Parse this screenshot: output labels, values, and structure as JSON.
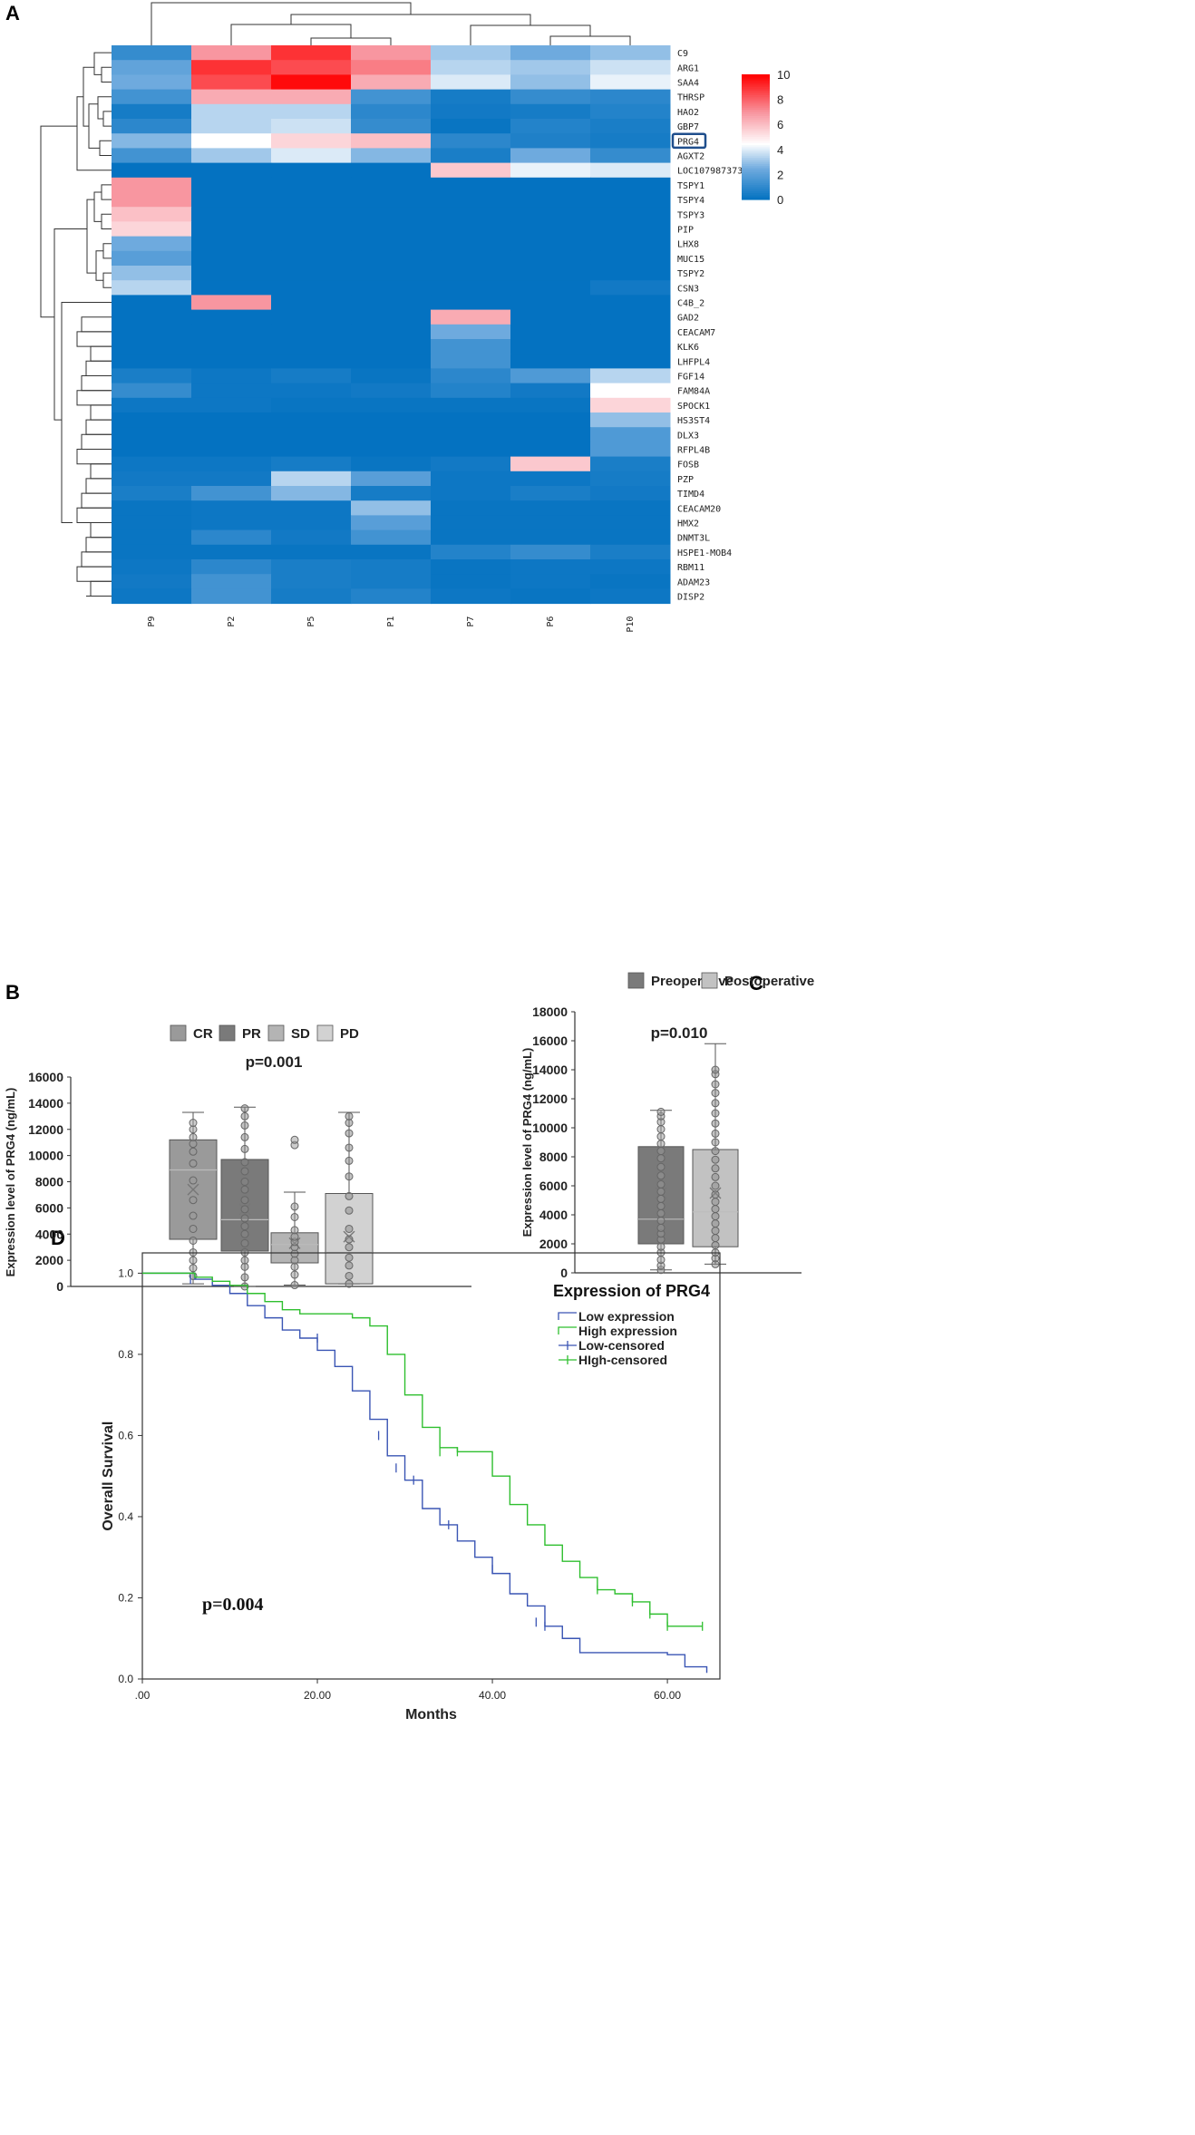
{
  "panels": {
    "a": "A",
    "b": "B",
    "c": "C",
    "d": "D"
  },
  "chart_data": [
    {
      "type": "heatmap",
      "columns": [
        "P9",
        "P2",
        "P5",
        "P1",
        "P7",
        "P6",
        "P10"
      ],
      "rows": [
        "C9",
        "ARG1",
        "SAA4",
        "THRSP",
        "HAO2",
        "GBP7",
        "PRG4",
        "AGXT2",
        "LOC107987373",
        "TSPY1",
        "TSPY4",
        "TSPY3",
        "PIP",
        "LHX8",
        "MUC15",
        "TSPY2",
        "CSN3",
        "C4B_2",
        "GAD2",
        "CEACAM7",
        "KLK6",
        "LHFPL4",
        "FGF14",
        "FAM84A",
        "SPOCK1",
        "HS3ST4",
        "DLX3",
        "RFPL4B",
        "FOSB",
        "PZP",
        "TIMD4",
        "CEACAM20",
        "HMX2",
        "DNMT3L",
        "HSPE1-MOB4",
        "RBM11",
        "ADAM23",
        "DISP2"
      ],
      "highlighted_row": "PRG4",
      "values": [
        [
          1.2,
          7.0,
          9.0,
          7.0,
          3.2,
          2.5,
          3.0
        ],
        [
          2.2,
          9.0,
          8.5,
          7.5,
          3.5,
          3.2,
          3.8
        ],
        [
          2.5,
          8.5,
          9.8,
          6.5,
          4.0,
          3.0,
          4.2
        ],
        [
          1.5,
          6.5,
          6.5,
          1.5,
          0.5,
          1.2,
          1.0
        ],
        [
          0.5,
          3.5,
          3.5,
          1.0,
          0.4,
          0.5,
          0.8
        ],
        [
          1.0,
          3.5,
          3.8,
          1.2,
          0.2,
          0.8,
          0.6
        ],
        [
          2.8,
          4.5,
          5.5,
          6.0,
          1.0,
          0.7,
          0.5
        ],
        [
          1.5,
          3.2,
          4.0,
          2.8,
          0.6,
          2.5,
          1.2
        ],
        [
          0.1,
          0.1,
          0.1,
          0.1,
          5.8,
          4.2,
          4.0
        ],
        [
          7.0,
          0.1,
          0.1,
          0.1,
          0.1,
          0.1,
          0.1
        ],
        [
          7.0,
          0.1,
          0.1,
          0.1,
          0.1,
          0.1,
          0.1
        ],
        [
          6.0,
          0.1,
          0.1,
          0.1,
          0.1,
          0.1,
          0.1
        ],
        [
          5.5,
          0.1,
          0.1,
          0.1,
          0.1,
          0.1,
          0.1
        ],
        [
          2.5,
          0.1,
          0.1,
          0.1,
          0.1,
          0.1,
          0.1
        ],
        [
          2.0,
          0.1,
          0.1,
          0.1,
          0.1,
          0.1,
          0.1
        ],
        [
          3.0,
          0.1,
          0.1,
          0.1,
          0.1,
          0.1,
          0.1
        ],
        [
          3.5,
          0.1,
          0.1,
          0.1,
          0.1,
          0.1,
          0.4
        ],
        [
          0.1,
          7.0,
          0.1,
          0.1,
          0.1,
          0.1,
          0.1
        ],
        [
          0.1,
          0.1,
          0.1,
          0.1,
          6.5,
          0.1,
          0.1
        ],
        [
          0.1,
          0.1,
          0.1,
          0.1,
          2.5,
          0.1,
          0.1
        ],
        [
          0.1,
          0.1,
          0.1,
          0.1,
          1.5,
          0.1,
          0.1
        ],
        [
          0.1,
          0.1,
          0.1,
          0.1,
          1.5,
          0.1,
          0.1
        ],
        [
          0.6,
          0.3,
          0.5,
          0.2,
          1.0,
          1.8,
          3.5
        ],
        [
          1.2,
          0.3,
          0.3,
          0.4,
          0.8,
          0.4,
          4.5
        ],
        [
          0.3,
          0.3,
          0.2,
          0.2,
          0.2,
          0.2,
          5.5
        ],
        [
          0.1,
          0.1,
          0.1,
          0.1,
          0.1,
          0.1,
          3.0
        ],
        [
          0.1,
          0.1,
          0.1,
          0.1,
          0.1,
          0.1,
          1.8
        ],
        [
          0.1,
          0.1,
          0.1,
          0.1,
          0.1,
          0.1,
          1.8
        ],
        [
          0.3,
          0.3,
          0.5,
          0.2,
          0.4,
          5.8,
          0.6
        ],
        [
          0.4,
          0.4,
          3.5,
          2.0,
          0.3,
          0.3,
          0.5
        ],
        [
          0.6,
          1.5,
          2.8,
          0.5,
          0.3,
          0.6,
          0.4
        ],
        [
          0.2,
          0.3,
          0.3,
          3.0,
          0.2,
          0.2,
          0.2
        ],
        [
          0.2,
          0.3,
          0.3,
          2.0,
          0.2,
          0.2,
          0.2
        ],
        [
          0.2,
          1.0,
          0.4,
          1.5,
          0.2,
          0.2,
          0.2
        ],
        [
          0.2,
          0.2,
          0.2,
          0.2,
          0.8,
          1.2,
          0.6
        ],
        [
          0.3,
          1.0,
          0.6,
          0.5,
          0.2,
          0.3,
          0.3
        ],
        [
          0.4,
          1.5,
          0.6,
          0.5,
          0.2,
          0.3,
          0.2
        ],
        [
          0.3,
          1.5,
          0.5,
          0.8,
          0.3,
          0.2,
          0.3
        ]
      ],
      "colorbar": {
        "min": 0,
        "max": 10,
        "ticks": [
          "0",
          "2",
          "4",
          "6",
          "8",
          "10"
        ]
      }
    },
    {
      "type": "box",
      "legend": [
        "CR",
        "PR",
        "SD",
        "PD"
      ],
      "ylabel": "Expression level of PRG4 (ng/mL)",
      "ylim": [
        0,
        16000
      ],
      "yticks": [
        "0",
        "2000",
        "4000",
        "6000",
        "8000",
        "10000",
        "12000",
        "14000",
        "16000"
      ],
      "annotation": "p=0.001",
      "series": [
        {
          "name": "CR",
          "min": 200,
          "q1": 3600,
          "median": 8900,
          "q3": 11200,
          "max": 13300,
          "mean": 7400,
          "points": [
            800,
            1400,
            2000,
            2600,
            3500,
            4400,
            5400,
            6600,
            8100,
            9400,
            10300,
            10900,
            11400,
            12000,
            12500
          ]
        },
        {
          "name": "PR",
          "min": 0,
          "q1": 2700,
          "median": 5100,
          "q3": 9700,
          "max": 13700,
          "mean": 5900,
          "points": [
            0,
            700,
            1500,
            2000,
            2600,
            3300,
            4000,
            4600,
            5200,
            5900,
            6600,
            7400,
            8000,
            8800,
            9500,
            10500,
            11400,
            12300,
            13000,
            13600
          ]
        },
        {
          "name": "SD",
          "min": 100,
          "q1": 1800,
          "median": 3200,
          "q3": 4100,
          "max": 7200,
          "mean": 3300,
          "points": [
            100,
            900,
            1500,
            2000,
            2500,
            3000,
            3400,
            3800,
            4300,
            5300,
            6100,
            10800,
            11200
          ]
        },
        {
          "name": "PD",
          "min": 200,
          "q1": 200,
          "median": 2600,
          "q3": 7100,
          "max": 13300,
          "mean": 3800,
          "points": [
            200,
            800,
            1600,
            2200,
            3000,
            3600,
            4400,
            5800,
            6900,
            8400,
            9600,
            10600,
            11700,
            12500,
            13000
          ]
        }
      ]
    },
    {
      "type": "box",
      "legend": [
        "Preoperative",
        "Postoperative"
      ],
      "ylabel": "Expression level of PRG4 (ng/mL)",
      "ylim": [
        0,
        18000
      ],
      "yticks": [
        "0",
        "2000",
        "4000",
        "6000",
        "8000",
        "10000",
        "12000",
        "14000",
        "16000",
        "18000"
      ],
      "annotation": "p=0.010",
      "series": [
        {
          "name": "Preoperative",
          "min": 200,
          "q1": 2000,
          "median": 3700,
          "q3": 8700,
          "max": 11200,
          "mean": 5500,
          "points": [
            200,
            500,
            900,
            1400,
            1800,
            2300,
            2700,
            3100,
            3600,
            4100,
            4600,
            5100,
            5600,
            6100,
            6700,
            7300,
            7900,
            8400,
            8900,
            9400,
            9900,
            10400,
            10800,
            11100
          ]
        },
        {
          "name": "Postoperative",
          "min": 600,
          "q1": 1800,
          "median": 4200,
          "q3": 8500,
          "max": 15800,
          "mean": 5500,
          "points": [
            600,
            1000,
            1400,
            1900,
            2400,
            2900,
            3400,
            3900,
            4400,
            4900,
            5400,
            6000,
            6600,
            7200,
            7800,
            8400,
            9000,
            9600,
            10300,
            11000,
            11700,
            12400,
            13000,
            13700,
            14000
          ]
        }
      ]
    },
    {
      "type": "line",
      "xlabel": "Months",
      "ylabel": "Overall Survival",
      "xlim": [
        0,
        66
      ],
      "ylim": [
        0,
        1.05
      ],
      "xticks": [
        ".00",
        "20.00",
        "40.00",
        "60.00"
      ],
      "yticks": [
        "0.0",
        "0.2",
        "0.4",
        "0.6",
        "0.8",
        "1.0"
      ],
      "legend_title": "Expression of PRG4",
      "legend": [
        "Low expression",
        "High expression",
        "Low-censored",
        "HIgh-censored"
      ],
      "annotation": "p=0.004",
      "colors": {
        "low": "#3a55b4",
        "high": "#2fbf2f"
      },
      "series": [
        {
          "name": "Low expression",
          "x": [
            0,
            4,
            6,
            8,
            10,
            12,
            14,
            16,
            18,
            20,
            22,
            24,
            26,
            28,
            30,
            32,
            34,
            36,
            38,
            40,
            42,
            44,
            46,
            48,
            50,
            52,
            54,
            56,
            58,
            60,
            62,
            64.5
          ],
          "y": [
            1.0,
            1.0,
            0.985,
            0.97,
            0.95,
            0.92,
            0.89,
            0.86,
            0.84,
            0.81,
            0.77,
            0.71,
            0.64,
            0.55,
            0.49,
            0.42,
            0.38,
            0.34,
            0.3,
            0.26,
            0.21,
            0.18,
            0.13,
            0.1,
            0.065,
            0.065,
            0.065,
            0.065,
            0.065,
            0.06,
            0.03,
            0.015
          ],
          "censored_x": [
            5.5,
            20,
            27,
            29,
            31,
            35,
            40,
            45,
            46
          ],
          "censored_y": [
            0.985,
            0.84,
            0.6,
            0.52,
            0.49,
            0.38,
            0.27,
            0.14,
            0.13
          ]
        },
        {
          "name": "High expression",
          "x": [
            0,
            4,
            6,
            8,
            10,
            12,
            14,
            16,
            18,
            20,
            22,
            24,
            26,
            28,
            30,
            32,
            34,
            36,
            38,
            40,
            42,
            44,
            46,
            48,
            50,
            52,
            54,
            56,
            58,
            60,
            62,
            64
          ],
          "y": [
            1.0,
            1.0,
            0.99,
            0.98,
            0.97,
            0.95,
            0.93,
            0.91,
            0.9,
            0.9,
            0.9,
            0.89,
            0.87,
            0.8,
            0.7,
            0.62,
            0.57,
            0.56,
            0.56,
            0.5,
            0.43,
            0.38,
            0.33,
            0.29,
            0.25,
            0.22,
            0.21,
            0.19,
            0.16,
            0.13,
            0.13,
            0.13
          ],
          "censored_x": [
            34,
            36,
            52,
            56,
            58,
            60,
            64
          ],
          "censored_y": [
            0.56,
            0.56,
            0.22,
            0.19,
            0.16,
            0.13,
            0.13
          ]
        }
      ]
    }
  ]
}
